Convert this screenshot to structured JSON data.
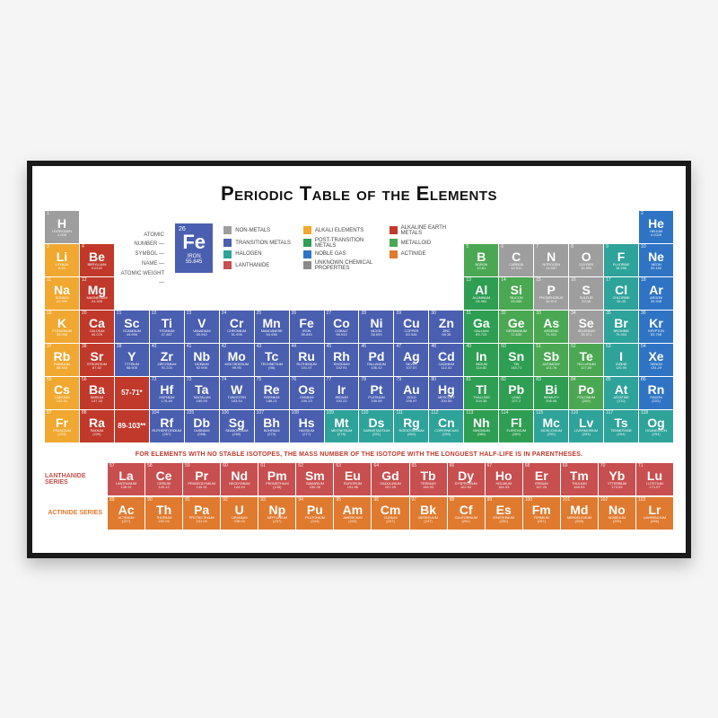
{
  "title": "Periodic Table of the Elements",
  "footnote": "FOR ELEMENTS WITH NO STABLE ISOTOPES, THE MASS NUMBER OF THE ISOTOPE WITH THE LONGUEST HALF-LIFE IS IN PARENTHESES.",
  "colors": {
    "nonmetal": "#9e9e9e",
    "alkali": "#f0a830",
    "alkaline_earth": "#c0392b",
    "transition": "#4a5fb0",
    "post_transition": "#2e9e53",
    "metalloid": "#4aa852",
    "halogen": "#2ea39a",
    "noble_gas": "#2f74c4",
    "lanthanide": "#c84f4f",
    "actinide": "#e07a2f",
    "unknown": "#8a8a8a",
    "marker": "#c0392b"
  },
  "legend": [
    {
      "label": "NON-METALS",
      "color": "#9e9e9e"
    },
    {
      "label": "ALKALI ELEMENTS",
      "color": "#f0a830"
    },
    {
      "label": "ALKALINE EARTH METALS",
      "color": "#c0392b"
    },
    {
      "label": "TRANSITION METALS",
      "color": "#4a5fb0"
    },
    {
      "label": "POST-TRANSITION METALS",
      "color": "#2e9e53"
    },
    {
      "label": "METALLOID",
      "color": "#4aa852"
    },
    {
      "label": "HALOGEN",
      "color": "#2ea39a"
    },
    {
      "label": "NOBLE GAS",
      "color": "#2f74c4"
    },
    {
      "label": "ACTINIDE",
      "color": "#e07a2f"
    },
    {
      "label": "LANTHANIDE",
      "color": "#c84f4f"
    },
    {
      "label": "UNKNOWN CHEMICAL PROPERTIES",
      "color": "#8a8a8a"
    }
  ],
  "key": {
    "labels": [
      "ATOMIC NUMBER",
      "SYMBOL",
      "NAME",
      "ATOMIC WEIGHT"
    ],
    "example": {
      "num": "26",
      "sym": "Fe",
      "name": "IRON",
      "weight": "55.845"
    }
  },
  "series_labels": {
    "lanth": "LANTHANIDE SERIES",
    "act": "ACTINIDE SERIES"
  },
  "markers": {
    "lanth": "57-71*",
    "act": "89-103**"
  },
  "elements": [
    {
      "n": 1,
      "s": "H",
      "nm": "HYDROGEN",
      "w": "1.008",
      "c": "nonmetal",
      "row": 1,
      "col": 1
    },
    {
      "n": 2,
      "s": "He",
      "nm": "HELIUM",
      "w": "4.0026",
      "c": "noble_gas",
      "row": 1,
      "col": 18
    },
    {
      "n": 3,
      "s": "Li",
      "nm": "LITHIUM",
      "w": "6.94",
      "c": "alkali",
      "row": 2,
      "col": 1
    },
    {
      "n": 4,
      "s": "Be",
      "nm": "BERYLLIUM",
      "w": "9.0122",
      "c": "alkaline_earth",
      "row": 2,
      "col": 2
    },
    {
      "n": 5,
      "s": "B",
      "nm": "BORON",
      "w": "10.81",
      "c": "metalloid",
      "row": 2,
      "col": 13
    },
    {
      "n": 6,
      "s": "C",
      "nm": "CARBON",
      "w": "12.011",
      "c": "nonmetal",
      "row": 2,
      "col": 14
    },
    {
      "n": 7,
      "s": "N",
      "nm": "NITROGEN",
      "w": "14.007",
      "c": "nonmetal",
      "row": 2,
      "col": 15
    },
    {
      "n": 8,
      "s": "O",
      "nm": "OXYGEN",
      "w": "15.999",
      "c": "nonmetal",
      "row": 2,
      "col": 16
    },
    {
      "n": 9,
      "s": "F",
      "nm": "FLUORINE",
      "w": "18.998",
      "c": "halogen",
      "row": 2,
      "col": 17
    },
    {
      "n": 10,
      "s": "Ne",
      "nm": "NEON",
      "w": "20.180",
      "c": "noble_gas",
      "row": 2,
      "col": 18
    },
    {
      "n": 11,
      "s": "Na",
      "nm": "SODIUM",
      "w": "22.990",
      "c": "alkali",
      "row": 3,
      "col": 1
    },
    {
      "n": 12,
      "s": "Mg",
      "nm": "MAGNESIUM",
      "w": "24.305",
      "c": "alkaline_earth",
      "row": 3,
      "col": 2
    },
    {
      "n": 13,
      "s": "Al",
      "nm": "ALUMINUM",
      "w": "26.982",
      "c": "post_transition",
      "row": 3,
      "col": 13
    },
    {
      "n": 14,
      "s": "Si",
      "nm": "SILICON",
      "w": "28.085",
      "c": "metalloid",
      "row": 3,
      "col": 14
    },
    {
      "n": 15,
      "s": "P",
      "nm": "PHOSPHORUS",
      "w": "30.974",
      "c": "nonmetal",
      "row": 3,
      "col": 15
    },
    {
      "n": 16,
      "s": "S",
      "nm": "SULFUR",
      "w": "32.06",
      "c": "nonmetal",
      "row": 3,
      "col": 16
    },
    {
      "n": 17,
      "s": "Cl",
      "nm": "CHLORINE",
      "w": "35.45",
      "c": "halogen",
      "row": 3,
      "col": 17
    },
    {
      "n": 18,
      "s": "Ar",
      "nm": "ARGON",
      "w": "39.948",
      "c": "noble_gas",
      "row": 3,
      "col": 18
    },
    {
      "n": 19,
      "s": "K",
      "nm": "POTASSIUM",
      "w": "39.098",
      "c": "alkali",
      "row": 4,
      "col": 1
    },
    {
      "n": 20,
      "s": "Ca",
      "nm": "CALCIUM",
      "w": "40.078",
      "c": "alkaline_earth",
      "row": 4,
      "col": 2
    },
    {
      "n": 21,
      "s": "Sc",
      "nm": "SCANDIUM",
      "w": "44.956",
      "c": "transition",
      "row": 4,
      "col": 3
    },
    {
      "n": 22,
      "s": "Ti",
      "nm": "TITANIUM",
      "w": "47.867",
      "c": "transition",
      "row": 4,
      "col": 4
    },
    {
      "n": 23,
      "s": "V",
      "nm": "VANADIUM",
      "w": "50.942",
      "c": "transition",
      "row": 4,
      "col": 5
    },
    {
      "n": 24,
      "s": "Cr",
      "nm": "CHROMIUM",
      "w": "51.996",
      "c": "transition",
      "row": 4,
      "col": 6
    },
    {
      "n": 25,
      "s": "Mn",
      "nm": "MANGANESE",
      "w": "54.938",
      "c": "transition",
      "row": 4,
      "col": 7
    },
    {
      "n": 26,
      "s": "Fe",
      "nm": "IRON",
      "w": "55.845",
      "c": "transition",
      "row": 4,
      "col": 8
    },
    {
      "n": 27,
      "s": "Co",
      "nm": "COBALT",
      "w": "58.933",
      "c": "transition",
      "row": 4,
      "col": 9
    },
    {
      "n": 28,
      "s": "Ni",
      "nm": "NICKEL",
      "w": "58.693",
      "c": "transition",
      "row": 4,
      "col": 10
    },
    {
      "n": 29,
      "s": "Cu",
      "nm": "COPPER",
      "w": "63.546",
      "c": "transition",
      "row": 4,
      "col": 11
    },
    {
      "n": 30,
      "s": "Zn",
      "nm": "ZINC",
      "w": "65.38",
      "c": "transition",
      "row": 4,
      "col": 12
    },
    {
      "n": 31,
      "s": "Ga",
      "nm": "GALLIUM",
      "w": "69.723",
      "c": "post_transition",
      "row": 4,
      "col": 13
    },
    {
      "n": 32,
      "s": "Ge",
      "nm": "GERMANIUM",
      "w": "72.630",
      "c": "metalloid",
      "row": 4,
      "col": 14
    },
    {
      "n": 33,
      "s": "As",
      "nm": "ARSENIC",
      "w": "74.922",
      "c": "metalloid",
      "row": 4,
      "col": 15
    },
    {
      "n": 34,
      "s": "Se",
      "nm": "SELENIUM",
      "w": "78.971",
      "c": "nonmetal",
      "row": 4,
      "col": 16
    },
    {
      "n": 35,
      "s": "Br",
      "nm": "BROMINE",
      "w": "79.904",
      "c": "halogen",
      "row": 4,
      "col": 17
    },
    {
      "n": 36,
      "s": "Kr",
      "nm": "KRYPTON",
      "w": "83.798",
      "c": "noble_gas",
      "row": 4,
      "col": 18
    },
    {
      "n": 37,
      "s": "Rb",
      "nm": "RUBIDIUM",
      "w": "85.468",
      "c": "alkali",
      "row": 5,
      "col": 1
    },
    {
      "n": 38,
      "s": "Sr",
      "nm": "STRONTIUM",
      "w": "87.62",
      "c": "alkaline_earth",
      "row": 5,
      "col": 2
    },
    {
      "n": 39,
      "s": "Y",
      "nm": "YTTRIUM",
      "w": "88.906",
      "c": "transition",
      "row": 5,
      "col": 3
    },
    {
      "n": 40,
      "s": "Zr",
      "nm": "ZIRCONIUM",
      "w": "91.224",
      "c": "transition",
      "row": 5,
      "col": 4
    },
    {
      "n": 41,
      "s": "Nb",
      "nm": "NIOBIUM",
      "w": "92.906",
      "c": "transition",
      "row": 5,
      "col": 5
    },
    {
      "n": 42,
      "s": "Mo",
      "nm": "MOLYBDENUM",
      "w": "95.95",
      "c": "transition",
      "row": 5,
      "col": 6
    },
    {
      "n": 43,
      "s": "Tc",
      "nm": "TECHNETIUM",
      "w": "(98)",
      "c": "transition",
      "row": 5,
      "col": 7
    },
    {
      "n": 44,
      "s": "Ru",
      "nm": "RUTHENIUM",
      "w": "101.07",
      "c": "transition",
      "row": 5,
      "col": 8
    },
    {
      "n": 45,
      "s": "Rh",
      "nm": "RHODIUM",
      "w": "102.91",
      "c": "transition",
      "row": 5,
      "col": 9
    },
    {
      "n": 46,
      "s": "Pd",
      "nm": "PALLADIUM",
      "w": "106.42",
      "c": "transition",
      "row": 5,
      "col": 10
    },
    {
      "n": 47,
      "s": "Ag",
      "nm": "SILVER",
      "w": "107.87",
      "c": "transition",
      "row": 5,
      "col": 11
    },
    {
      "n": 48,
      "s": "Cd",
      "nm": "CADMIUM",
      "w": "112.41",
      "c": "transition",
      "row": 5,
      "col": 12
    },
    {
      "n": 49,
      "s": "In",
      "nm": "INDIUM",
      "w": "114.82",
      "c": "post_transition",
      "row": 5,
      "col": 13
    },
    {
      "n": 50,
      "s": "Sn",
      "nm": "TIN",
      "w": "118.71",
      "c": "post_transition",
      "row": 5,
      "col": 14
    },
    {
      "n": 51,
      "s": "Sb",
      "nm": "ANTIMONY",
      "w": "121.76",
      "c": "metalloid",
      "row": 5,
      "col": 15
    },
    {
      "n": 52,
      "s": "Te",
      "nm": "TELLURIUM",
      "w": "127.60",
      "c": "metalloid",
      "row": 5,
      "col": 16
    },
    {
      "n": 53,
      "s": "I",
      "nm": "IODINE",
      "w": "126.90",
      "c": "halogen",
      "row": 5,
      "col": 17
    },
    {
      "n": 54,
      "s": "Xe",
      "nm": "XENON",
      "w": "131.29",
      "c": "noble_gas",
      "row": 5,
      "col": 18
    },
    {
      "n": 55,
      "s": "Cs",
      "nm": "CAESIUM",
      "w": "132.91",
      "c": "alkali",
      "row": 6,
      "col": 1
    },
    {
      "n": 56,
      "s": "Ba",
      "nm": "BARIUM",
      "w": "137.33",
      "c": "alkaline_earth",
      "row": 6,
      "col": 2
    },
    {
      "n": 72,
      "s": "Hf",
      "nm": "HAFNIUM",
      "w": "178.49",
      "c": "transition",
      "row": 6,
      "col": 4
    },
    {
      "n": 73,
      "s": "Ta",
      "nm": "TANTALUM",
      "w": "180.95",
      "c": "transition",
      "row": 6,
      "col": 5
    },
    {
      "n": 74,
      "s": "W",
      "nm": "TUNGSTEN",
      "w": "183.84",
      "c": "transition",
      "row": 6,
      "col": 6
    },
    {
      "n": 75,
      "s": "Re",
      "nm": "RHENIUM",
      "w": "186.21",
      "c": "transition",
      "row": 6,
      "col": 7
    },
    {
      "n": 76,
      "s": "Os",
      "nm": "OSMIUM",
      "w": "190.23",
      "c": "transition",
      "row": 6,
      "col": 8
    },
    {
      "n": 77,
      "s": "Ir",
      "nm": "IRIDIUM",
      "w": "192.22",
      "c": "transition",
      "row": 6,
      "col": 9
    },
    {
      "n": 78,
      "s": "Pt",
      "nm": "PLATINUM",
      "w": "195.08",
      "c": "transition",
      "row": 6,
      "col": 10
    },
    {
      "n": 79,
      "s": "Au",
      "nm": "GOLD",
      "w": "196.97",
      "c": "transition",
      "row": 6,
      "col": 11
    },
    {
      "n": 80,
      "s": "Hg",
      "nm": "MERCURY",
      "w": "200.59",
      "c": "transition",
      "row": 6,
      "col": 12
    },
    {
      "n": 81,
      "s": "Tl",
      "nm": "THALLIUM",
      "w": "204.38",
      "c": "post_transition",
      "row": 6,
      "col": 13
    },
    {
      "n": 82,
      "s": "Pb",
      "nm": "LEAD",
      "w": "207.2",
      "c": "post_transition",
      "row": 6,
      "col": 14
    },
    {
      "n": 83,
      "s": "Bi",
      "nm": "BISMUTH",
      "w": "208.98",
      "c": "post_transition",
      "row": 6,
      "col": 15
    },
    {
      "n": 84,
      "s": "Po",
      "nm": "POLONIUM",
      "w": "(209)",
      "c": "metalloid",
      "row": 6,
      "col": 16
    },
    {
      "n": 85,
      "s": "At",
      "nm": "ASTATINE",
      "w": "(210)",
      "c": "halogen",
      "row": 6,
      "col": 17
    },
    {
      "n": 86,
      "s": "Rn",
      "nm": "RADON",
      "w": "(222)",
      "c": "noble_gas",
      "row": 6,
      "col": 18
    },
    {
      "n": 87,
      "s": "Fr",
      "nm": "FRANCIUM",
      "w": "(223)",
      "c": "alkali",
      "row": 7,
      "col": 1
    },
    {
      "n": 88,
      "s": "Ra",
      "nm": "RADIUM",
      "w": "(226)",
      "c": "alkaline_earth",
      "row": 7,
      "col": 2
    },
    {
      "n": 104,
      "s": "Rf",
      "nm": "RUTHERFORDIUM",
      "w": "(267)",
      "c": "transition",
      "row": 7,
      "col": 4
    },
    {
      "n": 105,
      "s": "Db",
      "nm": "DUBNIUM",
      "w": "(268)",
      "c": "transition",
      "row": 7,
      "col": 5
    },
    {
      "n": 106,
      "s": "Sg",
      "nm": "SEABORGIUM",
      "w": "(269)",
      "c": "transition",
      "row": 7,
      "col": 6
    },
    {
      "n": 107,
      "s": "Bh",
      "nm": "BOHRIUM",
      "w": "(270)",
      "c": "transition",
      "row": 7,
      "col": 7
    },
    {
      "n": 108,
      "s": "Hs",
      "nm": "HASSIUM",
      "w": "(277)",
      "c": "transition",
      "row": 7,
      "col": 8
    },
    {
      "n": 109,
      "s": "Mt",
      "nm": "MEITNERIUM",
      "w": "(278)",
      "c": "halogen",
      "row": 7,
      "col": 9
    },
    {
      "n": 110,
      "s": "Ds",
      "nm": "DARMSTADTIUM",
      "w": "(281)",
      "c": "halogen",
      "row": 7,
      "col": 10
    },
    {
      "n": 111,
      "s": "Rg",
      "nm": "ROENTGENIUM",
      "w": "(282)",
      "c": "halogen",
      "row": 7,
      "col": 11
    },
    {
      "n": 112,
      "s": "Cn",
      "nm": "COPERNICIUM",
      "w": "(285)",
      "c": "halogen",
      "row": 7,
      "col": 12
    },
    {
      "n": 113,
      "s": "Nh",
      "nm": "NIHONIUM",
      "w": "(286)",
      "c": "post_transition",
      "row": 7,
      "col": 13
    },
    {
      "n": 114,
      "s": "Fl",
      "nm": "FLEROVIUM",
      "w": "(289)",
      "c": "post_transition",
      "row": 7,
      "col": 14
    },
    {
      "n": 115,
      "s": "Mc",
      "nm": "MOSCOVIUM",
      "w": "(290)",
      "c": "halogen",
      "row": 7,
      "col": 15
    },
    {
      "n": 116,
      "s": "Lv",
      "nm": "LIVERMORIUM",
      "w": "(293)",
      "c": "halogen",
      "row": 7,
      "col": 16
    },
    {
      "n": 117,
      "s": "Ts",
      "nm": "TENNESSINE",
      "w": "(294)",
      "c": "halogen",
      "row": 7,
      "col": 17
    },
    {
      "n": 118,
      "s": "Og",
      "nm": "OGANESSON",
      "w": "(294)",
      "c": "halogen",
      "row": 7,
      "col": 18
    }
  ],
  "lanthanides": [
    {
      "n": 57,
      "s": "La",
      "nm": "LANTHANUM",
      "w": "138.91"
    },
    {
      "n": 58,
      "s": "Ce",
      "nm": "CERIUM",
      "w": "140.12"
    },
    {
      "n": 59,
      "s": "Pr",
      "nm": "PRASEODYMIUM",
      "w": "140.91"
    },
    {
      "n": 60,
      "s": "Nd",
      "nm": "NEODYMIUM",
      "w": "144.24"
    },
    {
      "n": 61,
      "s": "Pm",
      "nm": "PROMETHIUM",
      "w": "(145)"
    },
    {
      "n": 62,
      "s": "Sm",
      "nm": "SAMARIUM",
      "w": "150.36"
    },
    {
      "n": 63,
      "s": "Eu",
      "nm": "EUROPIUM",
      "w": "151.96"
    },
    {
      "n": 64,
      "s": "Gd",
      "nm": "GADOLINIUM",
      "w": "157.25"
    },
    {
      "n": 65,
      "s": "Tb",
      "nm": "TERBIUM",
      "w": "158.93"
    },
    {
      "n": 66,
      "s": "Dy",
      "nm": "DYSPROSIUM",
      "w": "162.50"
    },
    {
      "n": 67,
      "s": "Ho",
      "nm": "HOLMIUM",
      "w": "164.93"
    },
    {
      "n": 68,
      "s": "Er",
      "nm": "ERBIUM",
      "w": "167.26"
    },
    {
      "n": 69,
      "s": "Tm",
      "nm": "THULIUM",
      "w": "168.93"
    },
    {
      "n": 70,
      "s": "Yb",
      "nm": "YTTERBIUM",
      "w": "173.05"
    },
    {
      "n": 71,
      "s": "Lu",
      "nm": "LUTETIUM",
      "w": "174.97"
    }
  ],
  "actinides": [
    {
      "n": 89,
      "s": "Ac",
      "nm": "ACTINIUM",
      "w": "(227)"
    },
    {
      "n": 90,
      "s": "Th",
      "nm": "THORIUM",
      "w": "232.04"
    },
    {
      "n": 91,
      "s": "Pa",
      "nm": "PROTACTINIUM",
      "w": "231.04"
    },
    {
      "n": 92,
      "s": "U",
      "nm": "URANIUM",
      "w": "238.03"
    },
    {
      "n": 93,
      "s": "Np",
      "nm": "NEPTUNIUM",
      "w": "(237)"
    },
    {
      "n": 94,
      "s": "Pu",
      "nm": "PLUTONIUM",
      "w": "(244)"
    },
    {
      "n": 95,
      "s": "Am",
      "nm": "AMERICIUM",
      "w": "(243)"
    },
    {
      "n": 96,
      "s": "Cm",
      "nm": "CURIUM",
      "w": "(247)"
    },
    {
      "n": 97,
      "s": "Bk",
      "nm": "BERKELIUM",
      "w": "(247)"
    },
    {
      "n": 98,
      "s": "Cf",
      "nm": "CALIFORNIUM",
      "w": "(251)"
    },
    {
      "n": 99,
      "s": "Es",
      "nm": "EINSTEINIUM",
      "w": "(252)"
    },
    {
      "n": 100,
      "s": "Fm",
      "nm": "FERMIUM",
      "w": "(257)"
    },
    {
      "n": 101,
      "s": "Md",
      "nm": "MENDELEVIUM",
      "w": "(258)"
    },
    {
      "n": 102,
      "s": "No",
      "nm": "NOBELIUM",
      "w": "(259)"
    },
    {
      "n": 103,
      "s": "Lr",
      "nm": "LAWRENCIUM",
      "w": "(266)"
    }
  ]
}
